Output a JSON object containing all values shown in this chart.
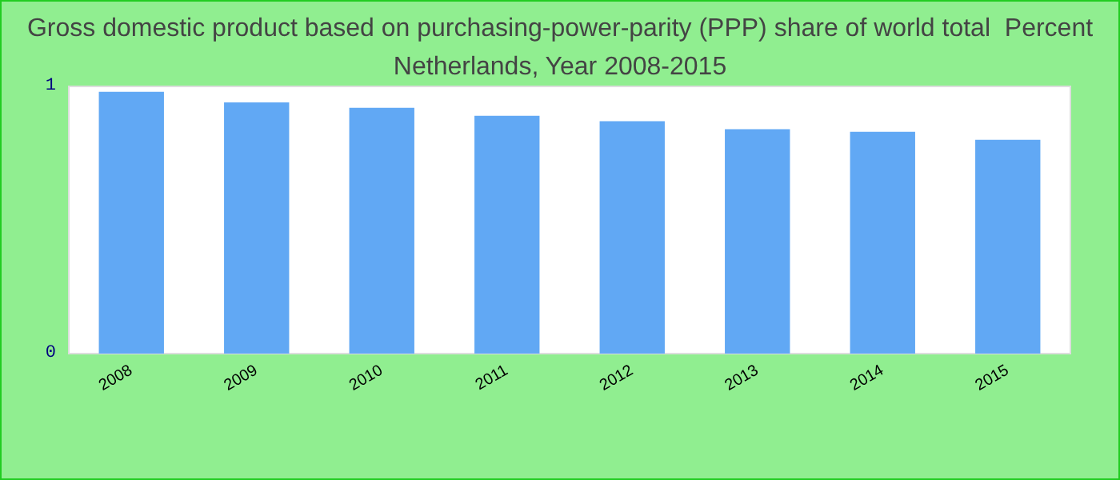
{
  "chart_data": {
    "type": "bar",
    "title": "Gross domestic product based on purchasing-power-parity (PPP) share of world total  Percent",
    "subtitle": "Netherlands, Year 2008-2015",
    "categories": [
      "2008",
      "2009",
      "2010",
      "2011",
      "2012",
      "2013",
      "2014",
      "2015"
    ],
    "values": [
      0.98,
      0.94,
      0.92,
      0.89,
      0.87,
      0.84,
      0.83,
      0.8
    ],
    "color": "#61a8f4",
    "ylim": [
      0,
      1
    ],
    "yticks": [
      0,
      1
    ],
    "grid": false
  }
}
